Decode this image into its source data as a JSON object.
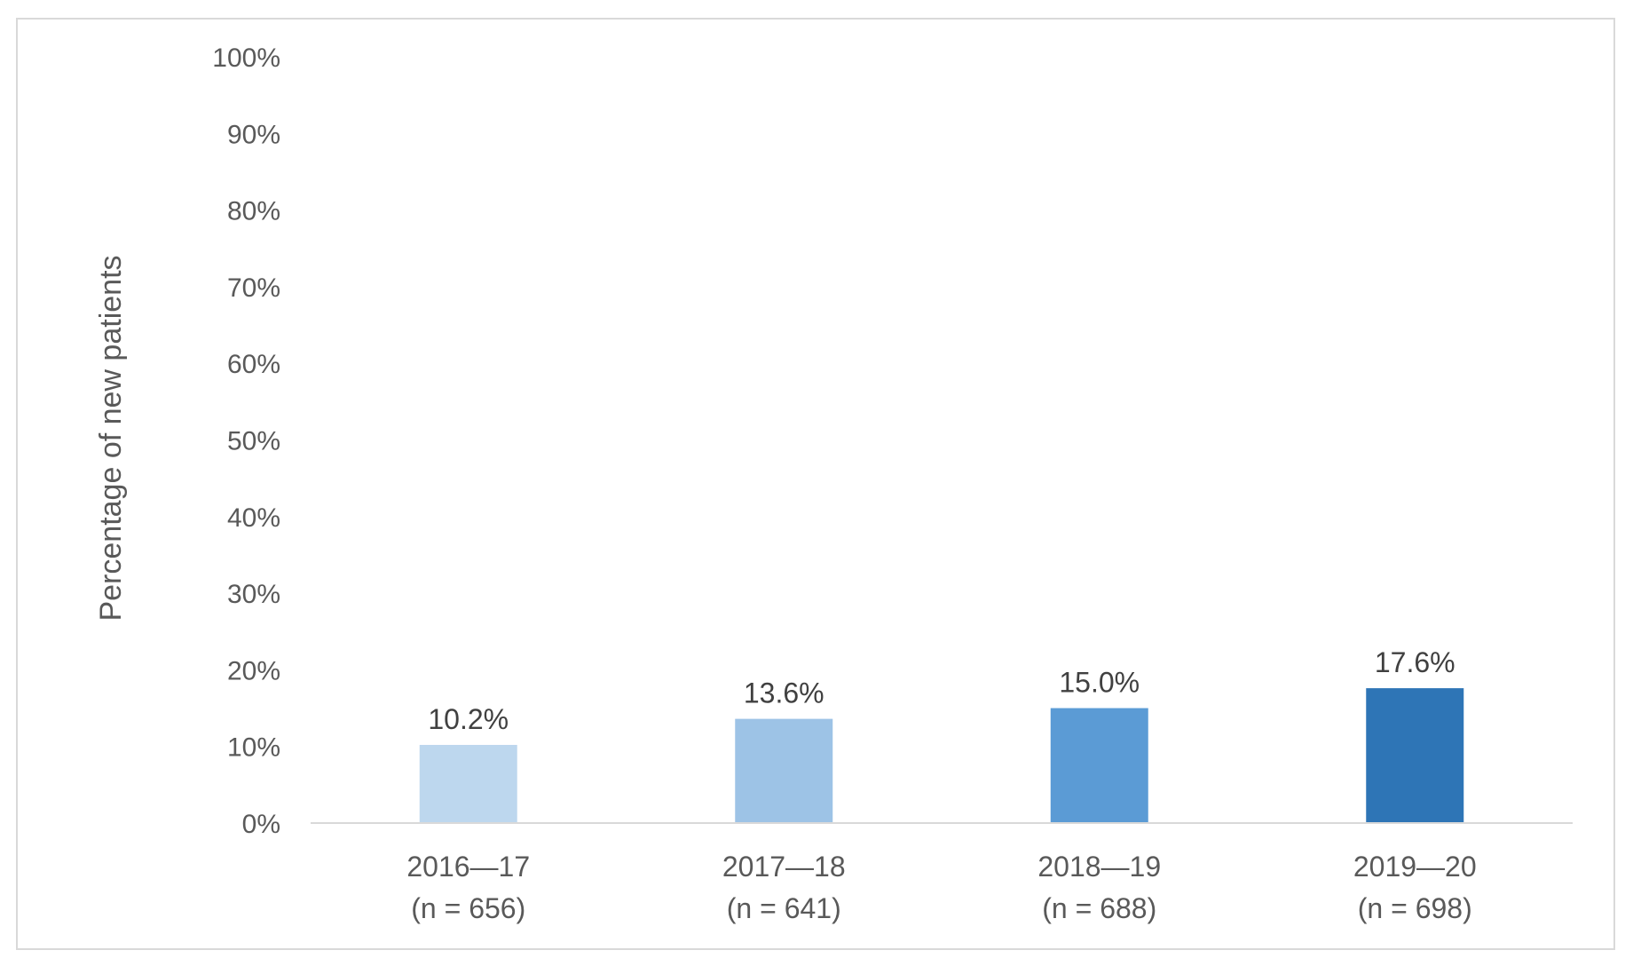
{
  "chart_data": {
    "type": "bar",
    "title": "",
    "xlabel": "",
    "ylabel": "Percentage of new patients",
    "ylim": [
      0,
      100
    ],
    "yticks": [
      "0%",
      "10%",
      "20%",
      "30%",
      "40%",
      "50%",
      "60%",
      "70%",
      "80%",
      "90%",
      "100%"
    ],
    "grid": false,
    "legend": "none",
    "categories": [
      {
        "period": "2016—17",
        "n": "(n = 656)"
      },
      {
        "period": "2017—18",
        "n": "(n = 641)"
      },
      {
        "period": "2018—19",
        "n": "(n = 688)"
      },
      {
        "period": "2019—20",
        "n": "(n = 698)"
      }
    ],
    "values": [
      10.2,
      13.6,
      15.0,
      17.6
    ],
    "value_labels": [
      "10.2%",
      "13.6%",
      "15.0%",
      "17.6%"
    ],
    "colors": [
      "#bdd7ee",
      "#9dc3e6",
      "#5b9bd5",
      "#2e75b6"
    ]
  }
}
